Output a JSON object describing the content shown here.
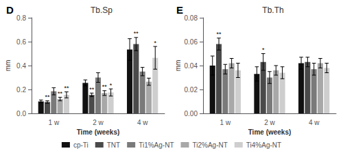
{
  "chart_data": [
    {
      "type": "bar",
      "title": "Tb.Sp",
      "panel_label": "D",
      "xlabel": "Time (weeks)",
      "ylabel": "mm",
      "categories": [
        "1 w",
        "2 w",
        "4 w"
      ],
      "ylim": [
        0,
        0.8
      ],
      "yticks": [
        {
          "value": 0,
          "label": "0.0"
        },
        0.2,
        0.4,
        0.6,
        0.8
      ],
      "grid": false,
      "legend": "bottom",
      "series": [
        {
          "name": "cp-Ti",
          "color": "#111111",
          "values": [
            0.1,
            0.255,
            0.535
          ],
          "errors": [
            0.012,
            0.025,
            0.09
          ],
          "significance": [
            null,
            null,
            null
          ]
        },
        {
          "name": "TNT",
          "color": "#4a4a4a",
          "values": [
            0.095,
            0.155,
            0.58
          ],
          "errors": [
            0.01,
            0.015,
            0.055
          ],
          "significance": [
            "**",
            "**",
            "**"
          ]
        },
        {
          "name": "Ti1%Ag-NT",
          "color": "#7a7a7a",
          "values": [
            0.185,
            0.3,
            0.35
          ],
          "errors": [
            0.03,
            0.04,
            0.035
          ],
          "significance": [
            null,
            null,
            null
          ]
        },
        {
          "name": "Ti2%Ag-NT",
          "color": "#a8a8a8",
          "values": [
            0.12,
            0.17,
            0.265
          ],
          "errors": [
            0.015,
            0.02,
            0.03
          ],
          "significance": [
            "**",
            "**",
            null
          ]
        },
        {
          "name": "Ti4%Ag-NT",
          "color": "#cecece",
          "values": [
            0.155,
            0.175,
            0.465
          ],
          "errors": [
            0.025,
            0.03,
            0.095
          ],
          "significance": [
            "**",
            "*",
            "*"
          ]
        }
      ]
    },
    {
      "type": "bar",
      "title": "Tb.Th",
      "panel_label": "E",
      "xlabel": "Time (weeks)",
      "ylabel": "mm",
      "categories": [
        "1 w",
        "2 w",
        "4 w"
      ],
      "ylim": [
        0,
        0.08
      ],
      "yticks": [
        {
          "value": 0,
          "label": "0.00"
        },
        0.02,
        0.04,
        0.06,
        0.08
      ],
      "grid": false,
      "legend": "bottom",
      "series": [
        {
          "name": "cp-Ti",
          "color": "#111111",
          "values": [
            0.04,
            0.033,
            0.042
          ],
          "errors": [
            0.008,
            0.006,
            0.005
          ],
          "significance": [
            null,
            null,
            null
          ]
        },
        {
          "name": "TNT",
          "color": "#4a4a4a",
          "values": [
            0.058,
            0.043,
            0.043
          ],
          "errors": [
            0.005,
            0.007,
            0.004
          ],
          "significance": [
            "**",
            "*",
            null
          ]
        },
        {
          "name": "Ti1%Ag-NT",
          "color": "#7a7a7a",
          "values": [
            0.037,
            0.03,
            0.037
          ],
          "errors": [
            0.004,
            0.005,
            0.005
          ],
          "significance": [
            null,
            null,
            null
          ]
        },
        {
          "name": "Ti2%Ag-NT",
          "color": "#a8a8a8",
          "values": [
            0.042,
            0.036,
            0.042
          ],
          "errors": [
            0.004,
            0.004,
            0.004
          ],
          "significance": [
            null,
            null,
            null
          ]
        },
        {
          "name": "Ti4%Ag-NT",
          "color": "#cecece",
          "values": [
            0.036,
            0.034,
            0.038
          ],
          "errors": [
            0.006,
            0.005,
            0.004
          ],
          "significance": [
            null,
            null,
            null
          ]
        }
      ]
    }
  ]
}
